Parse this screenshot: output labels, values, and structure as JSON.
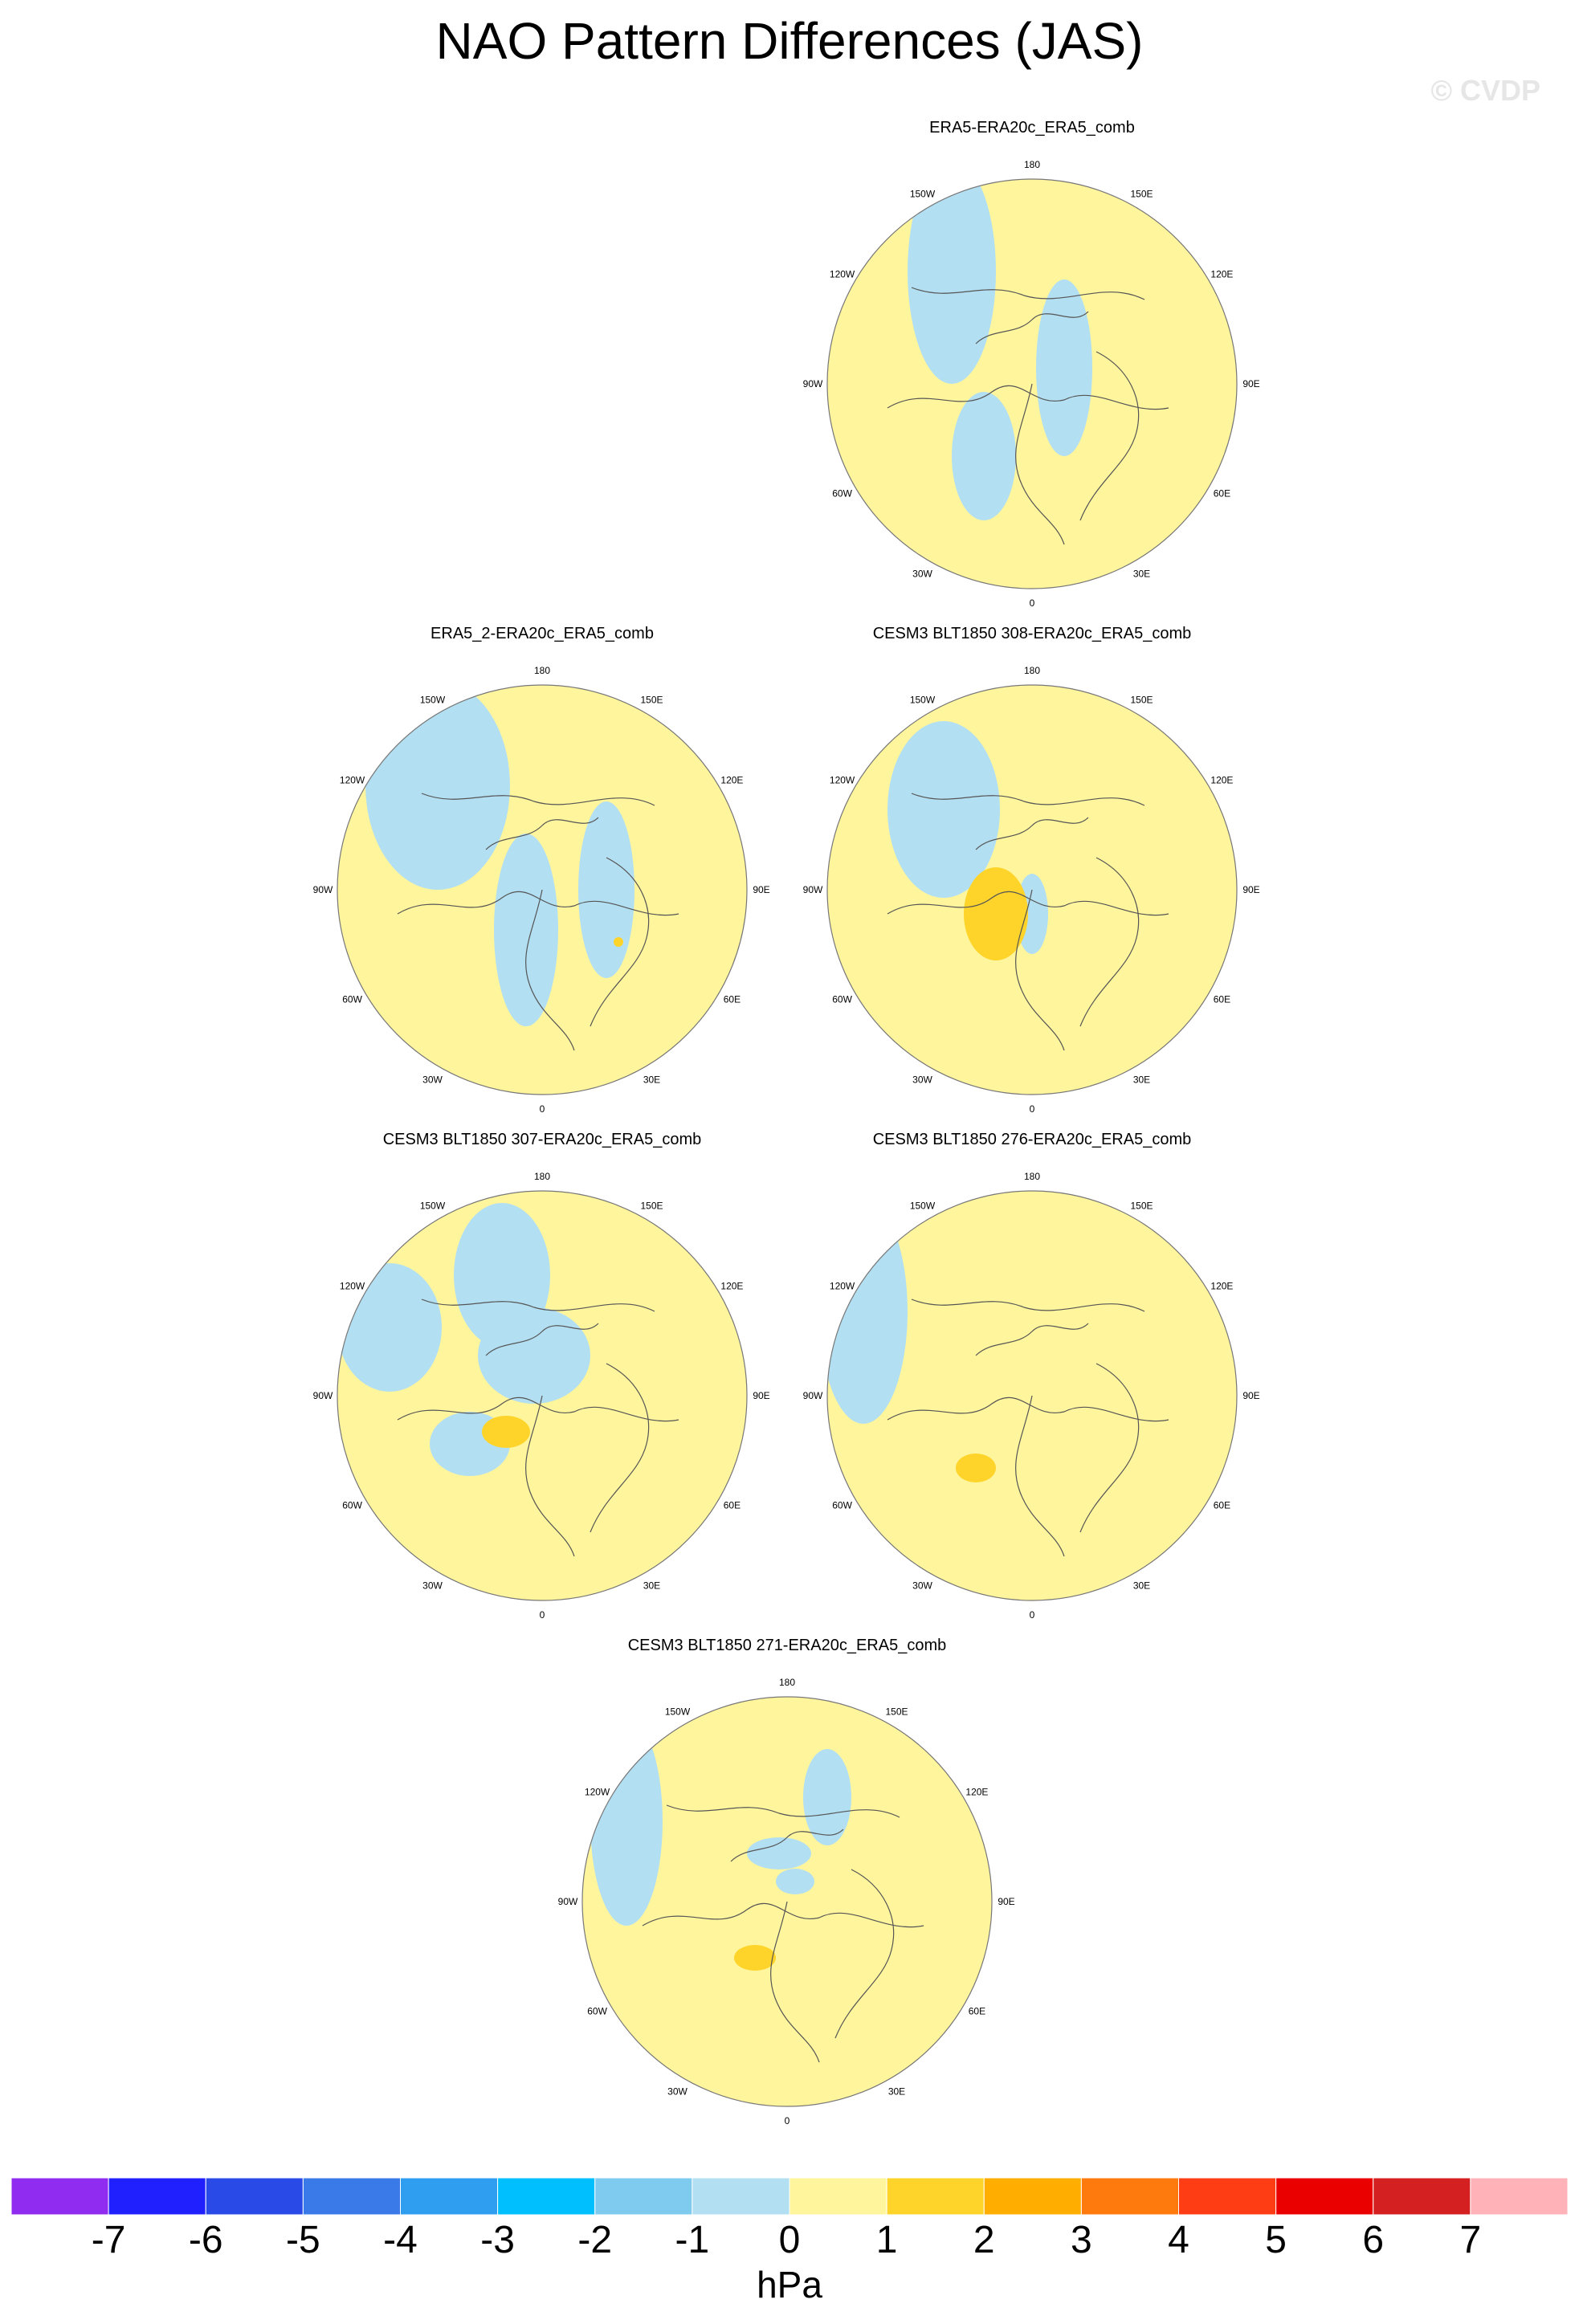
{
  "title": "NAO Pattern Differences (JAS)",
  "watermark": "© CVDP",
  "units": "hPa",
  "lon_labels": [
    "180",
    "150E",
    "120E",
    "90E",
    "60E",
    "30E",
    "0",
    "30W",
    "60W",
    "90W",
    "120W",
    "150W"
  ],
  "colors": {
    "neutral_positive": "#fff59d",
    "neutral_negative": "#b3dff2",
    "positive_1_2": "#ffd42a",
    "coast": "#555555"
  },
  "panels": [
    {
      "title": "ERA5-ERA20c_ERA5_comb",
      "blue": [
        [
          150,
          110,
          55,
          140
        ],
        [
          190,
          340,
          40,
          80
        ],
        [
          290,
          230,
          35,
          110
        ]
      ],
      "orange": []
    },
    {
      "title": "ERA5_2-ERA20c_ERA5_comb",
      "blue": [
        [
          120,
          120,
          90,
          130
        ],
        [
          230,
          300,
          40,
          120
        ],
        [
          330,
          250,
          35,
          110
        ]
      ],
      "orange": [
        [
          345,
          205,
          6,
          6
        ]
      ]
    },
    {
      "title": "CESM3 BLT1850 308-ERA20c_ERA5_comb",
      "blue": [
        [
          140,
          150,
          70,
          110
        ],
        [
          250,
          280,
          20,
          50
        ]
      ],
      "orange": [
        [
          205,
          170,
          40,
          58
        ]
      ]
    },
    {
      "title": "CESM3 BLT1850 307-ERA20c_ERA5_comb",
      "blue": [
        [
          60,
          165,
          65,
          80
        ],
        [
          160,
          310,
          50,
          40
        ],
        [
          200,
          100,
          60,
          90
        ],
        [
          240,
          200,
          70,
          60
        ]
      ],
      "orange": [
        [
          205,
          185,
          30,
          20
        ]
      ]
    },
    {
      "title": "CESM3 BLT1850 276-ERA20c_ERA5_comb",
      "blue": [
        [
          40,
          145,
          55,
          140
        ]
      ],
      "orange": [
        [
          180,
          230,
          25,
          18
        ]
      ]
    },
    {
      "title": "CESM3 BLT1850 271-ERA20c_ERA5_comb",
      "blue": [
        [
          50,
          150,
          45,
          130
        ],
        [
          240,
          190,
          40,
          20
        ],
        [
          300,
          120,
          30,
          60
        ],
        [
          260,
          225,
          24,
          16
        ]
      ],
      "orange": [
        [
          210,
          210,
          26,
          16
        ]
      ]
    }
  ],
  "colorbar": {
    "colors": [
      "#8f2cf0",
      "#2020ff",
      "#2a4ae8",
      "#3a7ae8",
      "#2f9ef0",
      "#00bfff",
      "#7fcbf0",
      "#b3dff2",
      "#fff59d",
      "#ffd42a",
      "#ffae00",
      "#ff7a0d",
      "#ff3d14",
      "#eb0000",
      "#d42020",
      "#ffb3b8"
    ],
    "labels": [
      "-7",
      "-6",
      "-5",
      "-4",
      "-3",
      "-2",
      "-1",
      "0",
      "1",
      "2",
      "3",
      "4",
      "5",
      "6",
      "7"
    ]
  }
}
